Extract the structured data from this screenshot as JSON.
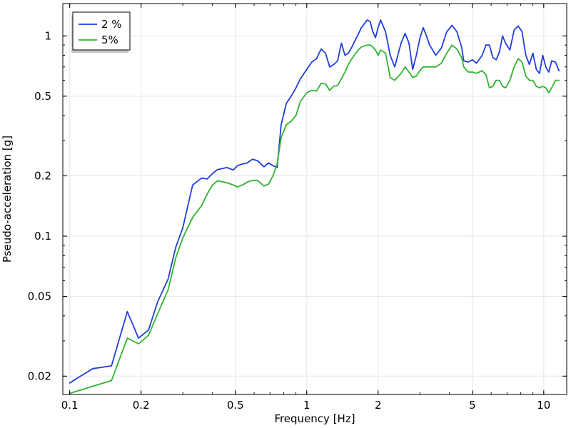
{
  "chart_data": {
    "type": "line",
    "xlabel": "Frequency [Hz]",
    "ylabel": "Pseudo-acceleration [g]",
    "xscale": "log",
    "yscale": "log",
    "xlim": [
      0.0935,
      12.5
    ],
    "ylim": [
      0.0162,
      1.45
    ],
    "grid": true,
    "legend_position": "top-left",
    "x_ticks": [
      {
        "value": 0.1,
        "label": "0.1"
      },
      {
        "value": 0.2,
        "label": "0.2"
      },
      {
        "value": 0.5,
        "label": "0.5"
      },
      {
        "value": 1,
        "label": "1"
      },
      {
        "value": 2,
        "label": "2"
      },
      {
        "value": 5,
        "label": "5"
      },
      {
        "value": 10,
        "label": "10"
      }
    ],
    "y_ticks": [
      {
        "value": 0.02,
        "label": "0.02"
      },
      {
        "value": 0.05,
        "label": "0.05"
      },
      {
        "value": 0.1,
        "label": "0.1"
      },
      {
        "value": 0.2,
        "label": "0.2"
      },
      {
        "value": 0.5,
        "label": "0.5"
      },
      {
        "value": 1,
        "label": "1"
      }
    ],
    "series": [
      {
        "name": "2 %",
        "color": "#1f3fdc",
        "x": [
          0.1,
          0.125,
          0.15,
          0.175,
          0.195,
          0.215,
          0.235,
          0.26,
          0.28,
          0.3,
          0.33,
          0.36,
          0.38,
          0.4,
          0.42,
          0.46,
          0.49,
          0.51,
          0.54,
          0.56,
          0.59,
          0.62,
          0.66,
          0.69,
          0.72,
          0.75,
          0.78,
          0.82,
          0.86,
          0.9,
          0.94,
          1.0,
          1.05,
          1.1,
          1.15,
          1.2,
          1.25,
          1.3,
          1.35,
          1.4,
          1.45,
          1.5,
          1.55,
          1.6,
          1.65,
          1.7,
          1.8,
          1.85,
          1.9,
          1.95,
          2.0,
          2.05,
          2.15,
          2.25,
          2.35,
          2.5,
          2.6,
          2.7,
          2.8,
          2.9,
          3.0,
          3.1,
          3.2,
          3.3,
          3.4,
          3.5,
          3.7,
          3.9,
          4.1,
          4.3,
          4.5,
          4.6,
          4.8,
          5.0,
          5.2,
          5.5,
          5.7,
          5.9,
          6.1,
          6.3,
          6.5,
          6.7,
          6.9,
          7.2,
          7.5,
          7.8,
          8.1,
          8.4,
          8.7,
          9.0,
          9.3,
          9.6,
          9.9,
          10.2,
          10.5,
          10.8,
          11.2,
          11.6
        ],
        "y": [
          0.0185,
          0.0218,
          0.0225,
          0.042,
          0.031,
          0.034,
          0.047,
          0.061,
          0.088,
          0.11,
          0.18,
          0.195,
          0.193,
          0.205,
          0.215,
          0.22,
          0.214,
          0.225,
          0.23,
          0.232,
          0.242,
          0.238,
          0.222,
          0.232,
          0.225,
          0.22,
          0.36,
          0.46,
          0.5,
          0.55,
          0.61,
          0.68,
          0.74,
          0.77,
          0.86,
          0.82,
          0.7,
          0.72,
          0.75,
          0.92,
          0.8,
          0.82,
          0.88,
          0.95,
          1.02,
          1.1,
          1.2,
          1.18,
          1.05,
          0.98,
          1.1,
          1.2,
          1.05,
          0.8,
          0.7,
          0.92,
          1.03,
          0.92,
          0.68,
          0.8,
          0.97,
          1.1,
          1.0,
          0.9,
          0.85,
          0.8,
          0.87,
          1.05,
          1.13,
          1.05,
          0.88,
          0.75,
          0.74,
          0.76,
          0.73,
          0.8,
          0.9,
          0.9,
          0.78,
          0.76,
          0.83,
          1.0,
          0.92,
          0.85,
          1.07,
          1.12,
          1.05,
          0.8,
          0.72,
          0.82,
          0.68,
          0.65,
          0.8,
          0.7,
          0.66,
          0.75,
          0.74,
          0.67
        ]
      },
      {
        "name": "5%",
        "color": "#2eb52e",
        "x": [
          0.1,
          0.125,
          0.15,
          0.175,
          0.195,
          0.215,
          0.235,
          0.26,
          0.28,
          0.3,
          0.33,
          0.36,
          0.38,
          0.4,
          0.42,
          0.46,
          0.49,
          0.51,
          0.54,
          0.56,
          0.59,
          0.62,
          0.66,
          0.69,
          0.72,
          0.75,
          0.78,
          0.82,
          0.86,
          0.9,
          0.94,
          1.0,
          1.05,
          1.1,
          1.15,
          1.2,
          1.25,
          1.3,
          1.35,
          1.4,
          1.45,
          1.5,
          1.55,
          1.6,
          1.65,
          1.7,
          1.8,
          1.85,
          1.9,
          1.95,
          2.0,
          2.05,
          2.15,
          2.25,
          2.35,
          2.5,
          2.6,
          2.7,
          2.8,
          2.9,
          3.0,
          3.1,
          3.2,
          3.3,
          3.4,
          3.5,
          3.7,
          3.9,
          4.1,
          4.3,
          4.5,
          4.6,
          4.8,
          5.0,
          5.2,
          5.5,
          5.7,
          5.9,
          6.1,
          6.3,
          6.5,
          6.7,
          6.9,
          7.2,
          7.5,
          7.8,
          8.1,
          8.4,
          8.7,
          9.0,
          9.3,
          9.6,
          9.9,
          10.2,
          10.5,
          10.8,
          11.2,
          11.6
        ],
        "y": [
          0.0164,
          0.0178,
          0.019,
          0.031,
          0.029,
          0.032,
          0.041,
          0.054,
          0.078,
          0.098,
          0.124,
          0.142,
          0.162,
          0.18,
          0.189,
          0.185,
          0.18,
          0.176,
          0.181,
          0.186,
          0.19,
          0.19,
          0.178,
          0.182,
          0.2,
          0.23,
          0.31,
          0.36,
          0.375,
          0.4,
          0.47,
          0.52,
          0.535,
          0.53,
          0.58,
          0.575,
          0.535,
          0.56,
          0.565,
          0.61,
          0.66,
          0.72,
          0.77,
          0.81,
          0.85,
          0.88,
          0.9,
          0.9,
          0.88,
          0.85,
          0.8,
          0.85,
          0.82,
          0.62,
          0.6,
          0.65,
          0.7,
          0.66,
          0.62,
          0.63,
          0.67,
          0.7,
          0.7,
          0.7,
          0.7,
          0.7,
          0.73,
          0.82,
          0.9,
          0.86,
          0.78,
          0.7,
          0.66,
          0.66,
          0.65,
          0.67,
          0.64,
          0.55,
          0.56,
          0.6,
          0.6,
          0.56,
          0.55,
          0.6,
          0.7,
          0.77,
          0.74,
          0.63,
          0.6,
          0.6,
          0.56,
          0.55,
          0.56,
          0.55,
          0.52,
          0.55,
          0.6,
          0.6
        ]
      }
    ]
  }
}
